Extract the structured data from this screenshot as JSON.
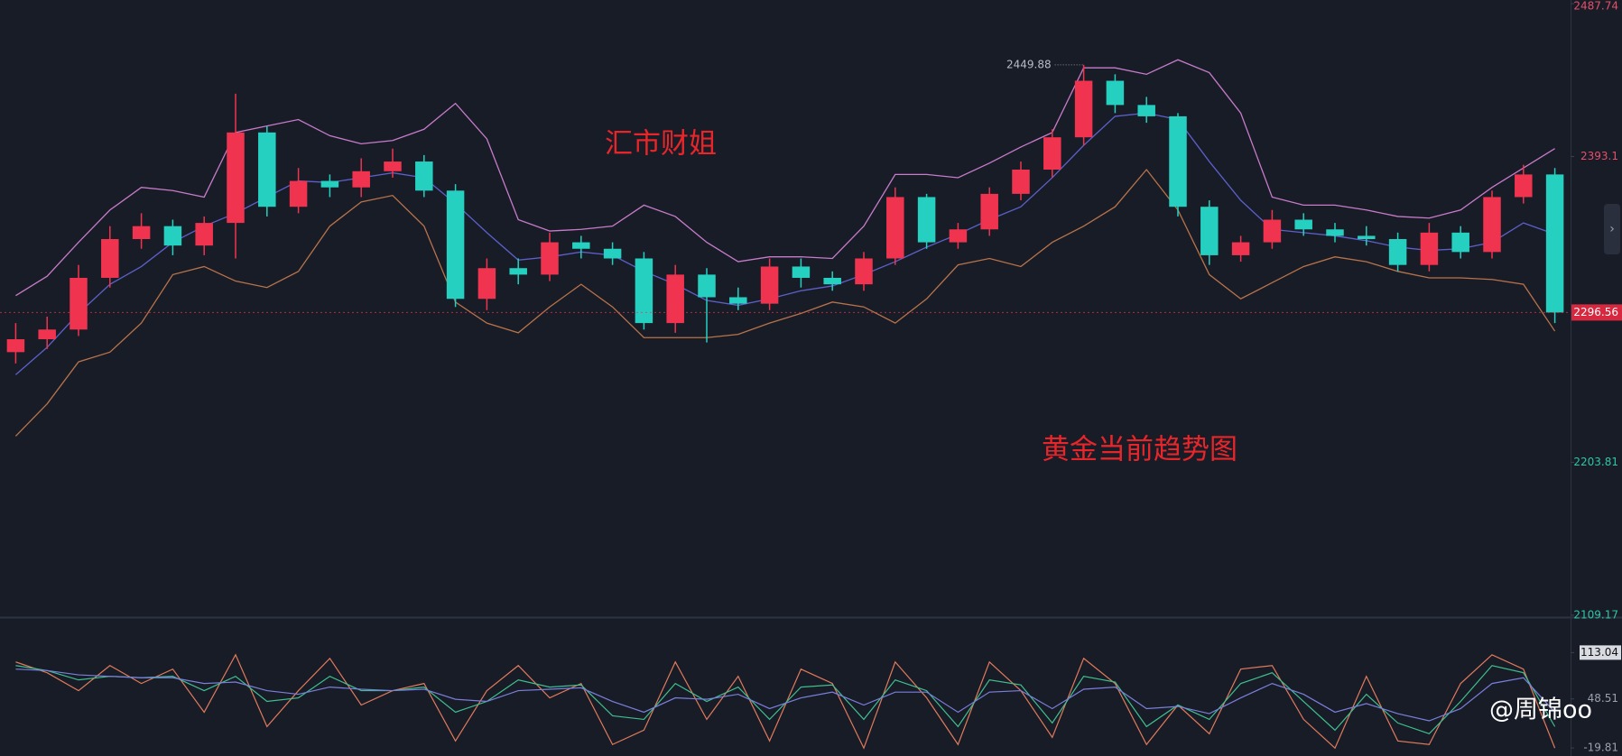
{
  "chart_data": [
    {
      "type": "candlestick",
      "title": "黄金当前趋势图",
      "annotations": [
        "汇市财姐"
      ],
      "up_color": "#f0344f",
      "down_color": "#26d0c0",
      "open": [
        2272,
        2280,
        2286,
        2318,
        2342,
        2350,
        2338,
        2352,
        2408,
        2362,
        2378,
        2374,
        2384,
        2390,
        2372,
        2305,
        2324,
        2320,
        2340,
        2336,
        2330,
        2290,
        2320,
        2306,
        2302,
        2325,
        2318,
        2314,
        2330,
        2368,
        2340,
        2348,
        2370,
        2385,
        2405,
        2440,
        2425,
        2418,
        2362,
        2332,
        2340,
        2354,
        2348,
        2344,
        2342,
        2326,
        2346,
        2334,
        2368,
        2382
      ],
      "high": [
        2290,
        2294,
        2326,
        2350,
        2358,
        2354,
        2356,
        2432,
        2412,
        2386,
        2382,
        2392,
        2398,
        2394,
        2376,
        2330,
        2330,
        2346,
        2344,
        2340,
        2334,
        2326,
        2324,
        2312,
        2330,
        2330,
        2322,
        2334,
        2374,
        2370,
        2352,
        2374,
        2390,
        2410,
        2449.88,
        2444,
        2430,
        2420,
        2366,
        2344,
        2360,
        2358,
        2352,
        2350,
        2346,
        2352,
        2350,
        2372,
        2388,
        2386
      ],
      "low": [
        2265,
        2274,
        2282,
        2312,
        2336,
        2332,
        2332,
        2330,
        2356,
        2358,
        2368,
        2368,
        2380,
        2368,
        2300,
        2298,
        2314,
        2316,
        2330,
        2326,
        2286,
        2284,
        2278,
        2298,
        2298,
        2312,
        2310,
        2310,
        2326,
        2336,
        2336,
        2344,
        2366,
        2380,
        2400,
        2420,
        2414,
        2356,
        2326,
        2328,
        2336,
        2344,
        2340,
        2338,
        2322,
        2322,
        2330,
        2330,
        2364,
        2290
      ],
      "close": [
        2280,
        2286,
        2318,
        2342,
        2350,
        2338,
        2352,
        2408,
        2362,
        2378,
        2374,
        2384,
        2390,
        2372,
        2305,
        2324,
        2320,
        2340,
        2336,
        2330,
        2290,
        2320,
        2306,
        2302,
        2325,
        2318,
        2314,
        2330,
        2368,
        2340,
        2348,
        2370,
        2385,
        2405,
        2440,
        2425,
        2418,
        2362,
        2332,
        2340,
        2354,
        2348,
        2344,
        2342,
        2326,
        2346,
        2334,
        2368,
        2382,
        2296.56
      ],
      "overlays": [
        {
          "color": "#c77bc9",
          "values": [
            2307,
            2319,
            2340,
            2360,
            2374,
            2372,
            2368,
            2408,
            2412,
            2416,
            2406,
            2401,
            2403,
            2410,
            2426,
            2404,
            2354,
            2347,
            2348,
            2350,
            2363,
            2356,
            2340,
            2328,
            2331,
            2331,
            2330,
            2350,
            2382,
            2382,
            2380,
            2389,
            2399,
            2408,
            2448,
            2448,
            2444,
            2453,
            2445,
            2420,
            2368,
            2363,
            2363,
            2360,
            2356,
            2355,
            2360,
            2374,
            2386,
            2398
          ]
        },
        {
          "color": "#5c60c8",
          "values": [
            2258,
            2275,
            2296,
            2314,
            2325,
            2340,
            2350,
            2358,
            2368,
            2378,
            2377,
            2380,
            2383,
            2380,
            2364,
            2346,
            2329,
            2331,
            2334,
            2332,
            2322,
            2314,
            2304,
            2301,
            2305,
            2310,
            2313,
            2320,
            2328,
            2337,
            2345,
            2354,
            2362,
            2380,
            2400,
            2418,
            2420,
            2416,
            2390,
            2366,
            2348,
            2346,
            2344,
            2341,
            2337,
            2335,
            2336,
            2340,
            2352,
            2345
          ]
        },
        {
          "color": "#b8734a",
          "values": [
            2220,
            2240,
            2266,
            2272,
            2290,
            2320,
            2325,
            2316,
            2312,
            2322,
            2350,
            2365,
            2369,
            2350,
            2303,
            2290,
            2284,
            2300,
            2314,
            2300,
            2281,
            2281,
            2281,
            2283,
            2290,
            2296,
            2303,
            2300,
            2290,
            2305,
            2326,
            2330,
            2325,
            2340,
            2350,
            2362,
            2385,
            2360,
            2320,
            2305,
            2315,
            2325,
            2331,
            2328,
            2322,
            2318,
            2318,
            2317,
            2314,
            2285
          ]
        }
      ],
      "ylim": [
        2108,
        2490
      ],
      "yticks": [
        2487.74,
        2393.1,
        2203.81,
        2109.17
      ]
    },
    {
      "type": "line",
      "series": [
        {
          "color": "#e07a5c",
          "values": [
            100,
            85,
            60,
            95,
            70,
            90,
            30,
            110,
            10,
            60,
            105,
            40,
            60,
            70,
            -10,
            60,
            95,
            50,
            70,
            -15,
            5,
            100,
            20,
            80,
            -10,
            90,
            70,
            -20,
            100,
            50,
            -15,
            100,
            60,
            -5,
            105,
            70,
            -15,
            40,
            0,
            90,
            95,
            20,
            -20,
            80,
            -10,
            -15,
            70,
            110,
            90,
            -20
          ]
        },
        {
          "color": "#3fbf8f",
          "values": [
            95,
            88,
            75,
            80,
            78,
            80,
            60,
            80,
            45,
            50,
            80,
            60,
            60,
            65,
            30,
            45,
            75,
            65,
            68,
            25,
            20,
            70,
            45,
            65,
            20,
            65,
            68,
            20,
            75,
            60,
            10,
            75,
            68,
            15,
            80,
            72,
            10,
            40,
            20,
            70,
            85,
            45,
            5,
            55,
            15,
            0,
            45,
            95,
            85,
            10
          ]
        },
        {
          "color": "#7b7fdc",
          "values": [
            90,
            88,
            82,
            80,
            78,
            78,
            70,
            72,
            60,
            55,
            65,
            62,
            60,
            62,
            48,
            45,
            60,
            62,
            64,
            45,
            30,
            50,
            48,
            55,
            35,
            50,
            58,
            40,
            58,
            58,
            30,
            58,
            60,
            35,
            62,
            65,
            35,
            38,
            28,
            50,
            70,
            55,
            30,
            42,
            28,
            18,
            35,
            70,
            78,
            30
          ]
        }
      ],
      "ylim": [
        -31,
        160
      ],
      "yticks": [
        113.04,
        48.51,
        -19.81
      ]
    }
  ],
  "watermark": "@周锦oo"
}
